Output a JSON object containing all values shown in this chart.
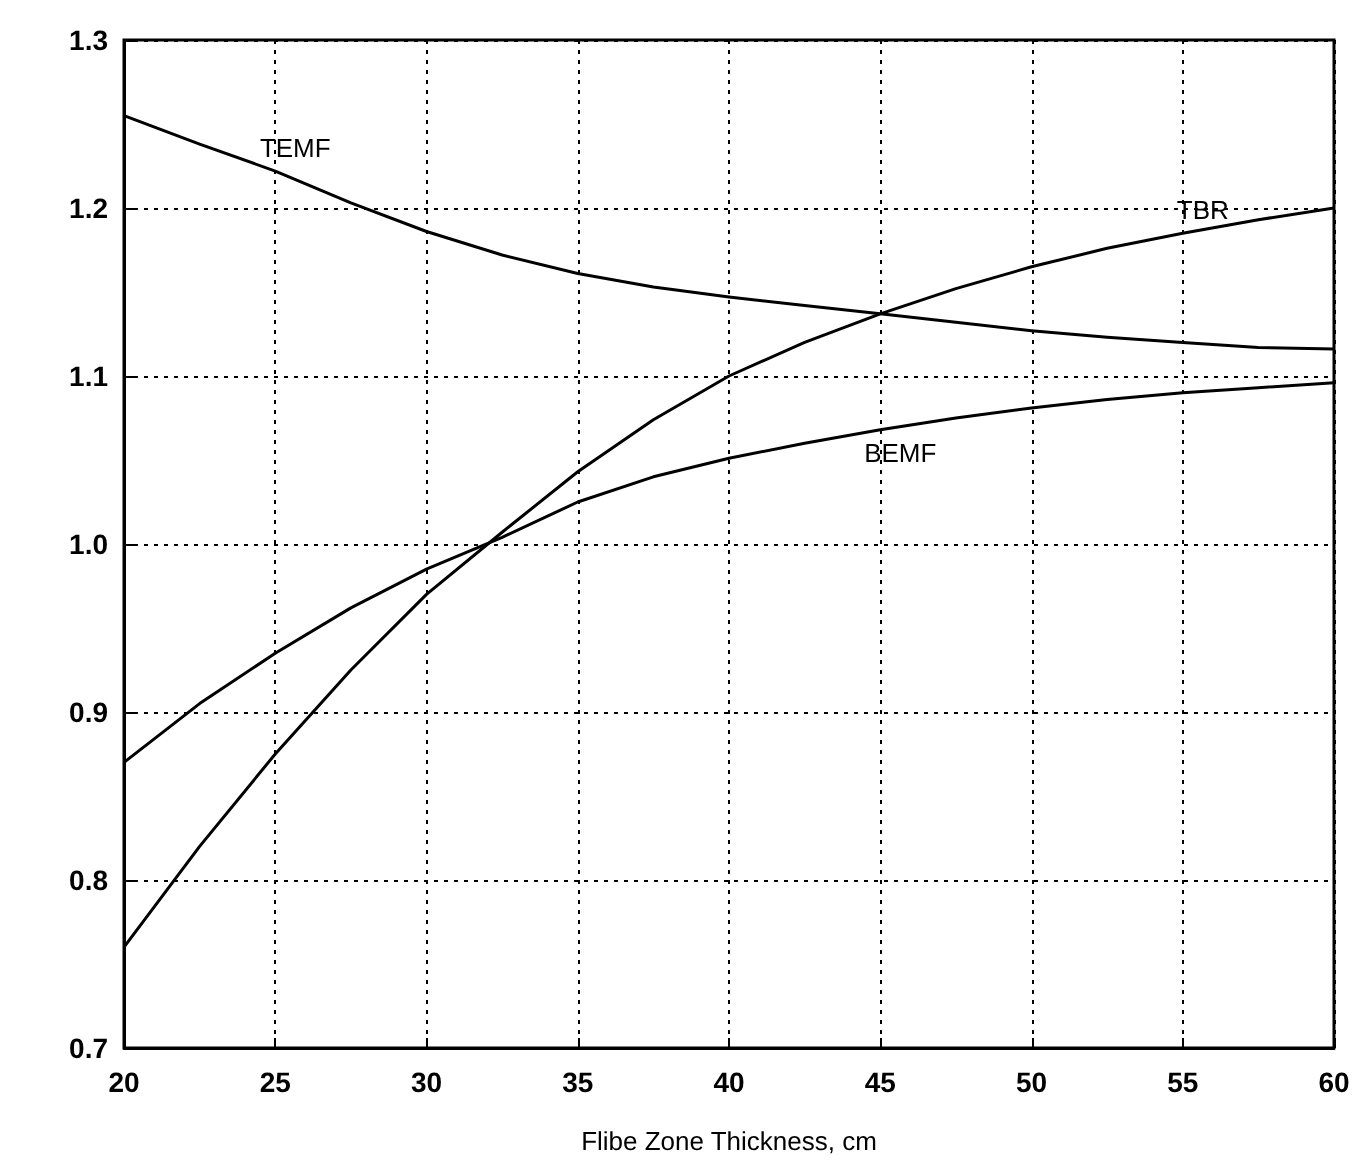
{
  "chart_data": {
    "type": "line",
    "xlabel": "Flibe Zone Thickness, cm",
    "xlim": [
      20,
      60
    ],
    "xticks": [
      20,
      25,
      30,
      35,
      40,
      45,
      50,
      55,
      60
    ],
    "ylim": [
      0.7,
      1.3
    ],
    "yticks": [
      0.7,
      0.8,
      0.9,
      {
        "value": 1,
        "label": "1.0"
      },
      1.1,
      1.2,
      1.3
    ],
    "grid": true,
    "marker": "none",
    "line_style": "solid",
    "legend": false,
    "x": [
      20,
      22.5,
      25,
      27.5,
      30,
      32.5,
      35,
      37.5,
      40,
      42.5,
      45,
      47.5,
      50,
      52.5,
      55,
      57.5,
      60
    ],
    "series": [
      {
        "name": "TEMF",
        "color": "#000000",
        "values": [
          1.255,
          1.238,
          1.222,
          1.203,
          1.186,
          1.172,
          1.161,
          1.153,
          1.147,
          1.142,
          1.137,
          1.132,
          1.127,
          1.123,
          1.12,
          1.117,
          1.116
        ]
      },
      {
        "name": "TBR",
        "color": "#000000",
        "values": [
          0.76,
          0.82,
          0.875,
          0.925,
          0.97,
          1.007,
          1.043,
          1.074,
          1.1,
          1.12,
          1.137,
          1.152,
          1.165,
          1.176,
          1.185,
          1.193,
          1.2
        ]
      },
      {
        "name": "BEMF",
        "color": "#000000",
        "values": [
          0.87,
          0.905,
          0.935,
          0.962,
          0.985,
          1.004,
          1.025,
          1.04,
          1.051,
          1.06,
          1.068,
          1.075,
          1.081,
          1.086,
          1.09,
          1.093,
          1.096
        ]
      }
    ]
  }
}
